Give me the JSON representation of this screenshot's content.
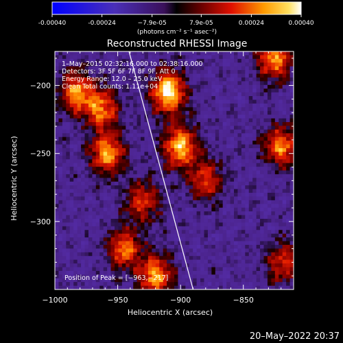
{
  "chart_data": {
    "type": "heatmap",
    "title": "Reconstructed RHESSI Image",
    "xlabel": "Heliocentric X (arcsec)",
    "ylabel": "Heliocentric Y (arcsec)",
    "xlim": [
      -1000,
      -810
    ],
    "ylim": [
      -350,
      -175
    ],
    "x_ticks": [
      -1000,
      -950,
      -900,
      -850
    ],
    "x_tick_labels": [
      "−1000",
      "−950",
      "−900",
      "−850"
    ],
    "y_ticks": [
      -200,
      -250,
      -300
    ],
    "y_tick_labels": [
      "−200",
      "−250",
      "−300"
    ],
    "grid": false,
    "limb_line": [
      [
        -941,
        -175
      ],
      [
        -890,
        -350
      ]
    ],
    "colorbar": {
      "range": [
        -0.0004,
        0.0004
      ],
      "tick_values": [
        -0.0004,
        -0.00024,
        -7.9e-05,
        7.9e-05,
        0.00024,
        0.0004
      ],
      "tick_labels": [
        "-0.00040",
        "-0.00024",
        "−7.9e-05",
        "7.9e-05",
        "0.00024",
        "0.00040"
      ],
      "units": "(photons cm⁻² s⁻¹ asec⁻²)"
    },
    "annotations": [
      "1–May–2015 02:32:16.000 to 02:38:16.000",
      "Detectors: 3F 5F 6F 7F 8F 9F, Att 0",
      "Energy Range: 12.0 – 25.0 keV",
      "Clean    Total counts: 1.11e+04"
    ],
    "peak_label": "Position of Peak = [−963,−217]",
    "peak_position": [
      -963,
      -217
    ],
    "hot_sources": [
      {
        "x": -983,
        "y": -205,
        "peak": 0.00028
      },
      {
        "x": -958,
        "y": -250,
        "peak": 0.0003
      },
      {
        "x": -963,
        "y": -217,
        "peak": 0.00026
      },
      {
        "x": -930,
        "y": -285,
        "peak": 0.00018
      },
      {
        "x": -910,
        "y": -205,
        "peak": 0.0004
      },
      {
        "x": -900,
        "y": -245,
        "peak": 0.00034
      },
      {
        "x": -945,
        "y": -320,
        "peak": 0.00024
      },
      {
        "x": -920,
        "y": -340,
        "peak": 0.0003
      },
      {
        "x": -880,
        "y": -270,
        "peak": 0.00018
      },
      {
        "x": -820,
        "y": -245,
        "peak": 0.00026
      },
      {
        "x": -825,
        "y": -180,
        "peak": 0.0003
      },
      {
        "x": -818,
        "y": -330,
        "peak": 0.00016
      }
    ],
    "background_level": -9e-05
  },
  "timestamp": "20–May–2022 20:37"
}
